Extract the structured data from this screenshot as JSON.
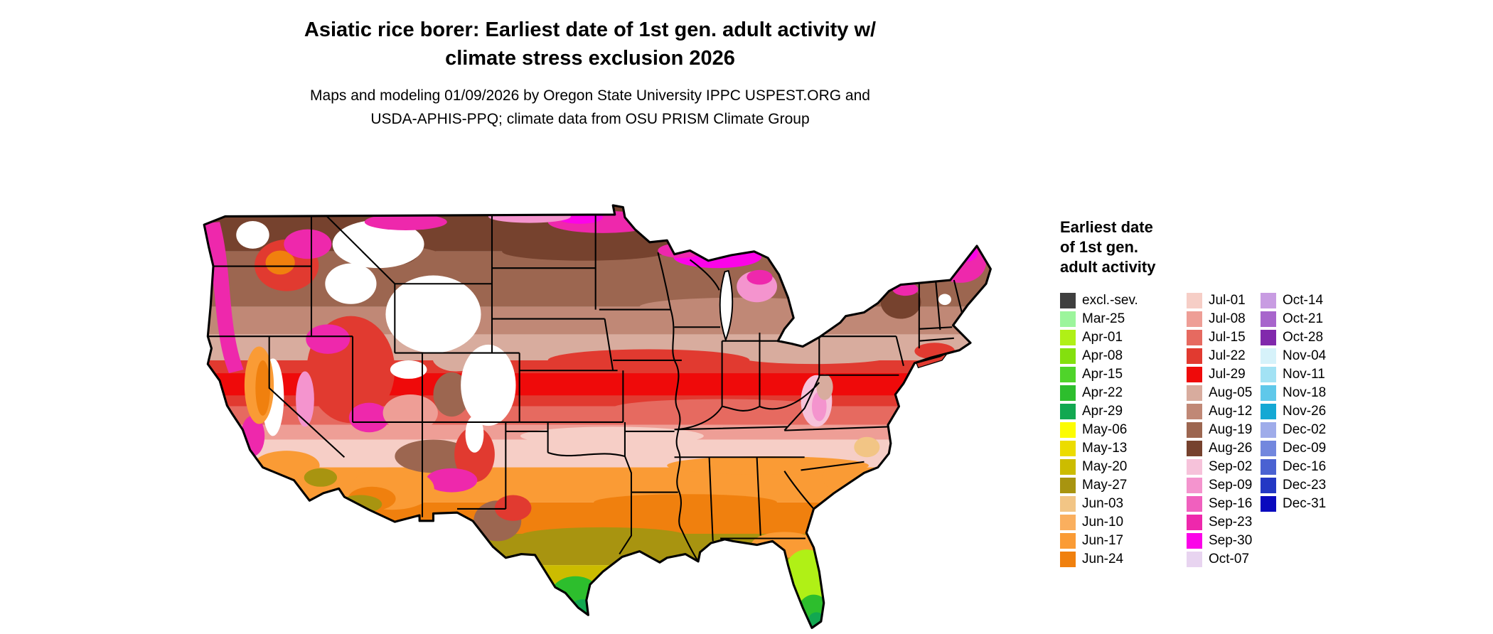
{
  "title": {
    "line1": "Asiatic rice borer: Earliest date of 1st gen. adult activity w/",
    "line2": "climate stress exclusion 2026"
  },
  "subtitle": {
    "line1": "Maps and modeling 01/09/2026 by Oregon State University IPPC USPEST.ORG and",
    "line2": "USDA-APHIS-PPQ; climate data from OSU PRISM Climate Group"
  },
  "legend": {
    "title_lines": [
      "Earliest date",
      "of 1st gen.",
      "adult activity"
    ],
    "columns": [
      {
        "items": [
          {
            "label": "excl.-sev.",
            "color": "#3F3F3F"
          },
          {
            "label": "Mar-25",
            "color": "#9CF59C"
          },
          {
            "label": "Apr-01",
            "color": "#B0F016"
          },
          {
            "label": "Apr-08",
            "color": "#84E00E"
          },
          {
            "label": "Apr-15",
            "color": "#4FD42A"
          },
          {
            "label": "Apr-22",
            "color": "#2DBE2D"
          },
          {
            "label": "Apr-29",
            "color": "#12A851"
          },
          {
            "label": "May-06",
            "color": "#FCFC02"
          },
          {
            "label": "May-13",
            "color": "#ECDC00"
          },
          {
            "label": "May-20",
            "color": "#CCBC00"
          },
          {
            "label": "May-27",
            "color": "#A89410"
          },
          {
            "label": "Jun-03",
            "color": "#F2C585"
          },
          {
            "label": "Jun-10",
            "color": "#FAAF5E"
          },
          {
            "label": "Jun-17",
            "color": "#FA9B35"
          },
          {
            "label": "Jun-24",
            "color": "#F0800E"
          }
        ]
      },
      {
        "items": [
          {
            "label": "Jul-01",
            "color": "#F6CEC6"
          },
          {
            "label": "Jul-08",
            "color": "#EE9E96"
          },
          {
            "label": "Jul-15",
            "color": "#E66A60"
          },
          {
            "label": "Jul-22",
            "color": "#E13A30"
          },
          {
            "label": "Jul-29",
            "color": "#EF0A0A"
          },
          {
            "label": "Aug-05",
            "color": "#D8AC9E"
          },
          {
            "label": "Aug-12",
            "color": "#C08876"
          },
          {
            "label": "Aug-19",
            "color": "#9C6650"
          },
          {
            "label": "Aug-26",
            "color": "#76422E"
          },
          {
            "label": "Sep-02",
            "color": "#F6C2DA"
          },
          {
            "label": "Sep-09",
            "color": "#F494CE"
          },
          {
            "label": "Sep-16",
            "color": "#F060BE"
          },
          {
            "label": "Sep-23",
            "color": "#EE28AC"
          },
          {
            "label": "Sep-30",
            "color": "#FB04E8"
          },
          {
            "label": "Oct-07",
            "color": "#E8D4F0"
          }
        ]
      },
      {
        "items": [
          {
            "label": "Oct-14",
            "color": "#C89CE2"
          },
          {
            "label": "Oct-21",
            "color": "#A865CC"
          },
          {
            "label": "Oct-28",
            "color": "#8129AC"
          },
          {
            "label": "Nov-04",
            "color": "#D6F2FA"
          },
          {
            "label": "Nov-11",
            "color": "#A2E2F4"
          },
          {
            "label": "Nov-18",
            "color": "#5FC8EA"
          },
          {
            "label": "Nov-26",
            "color": "#14A8D4"
          },
          {
            "label": "Dec-02",
            "color": "#9FACEA"
          },
          {
            "label": "Dec-09",
            "color": "#7287DE"
          },
          {
            "label": "Dec-16",
            "color": "#4A62D2"
          },
          {
            "label": "Dec-23",
            "color": "#2338C4"
          },
          {
            "label": "Dec-31",
            "color": "#0A0ABE"
          }
        ]
      }
    ]
  }
}
